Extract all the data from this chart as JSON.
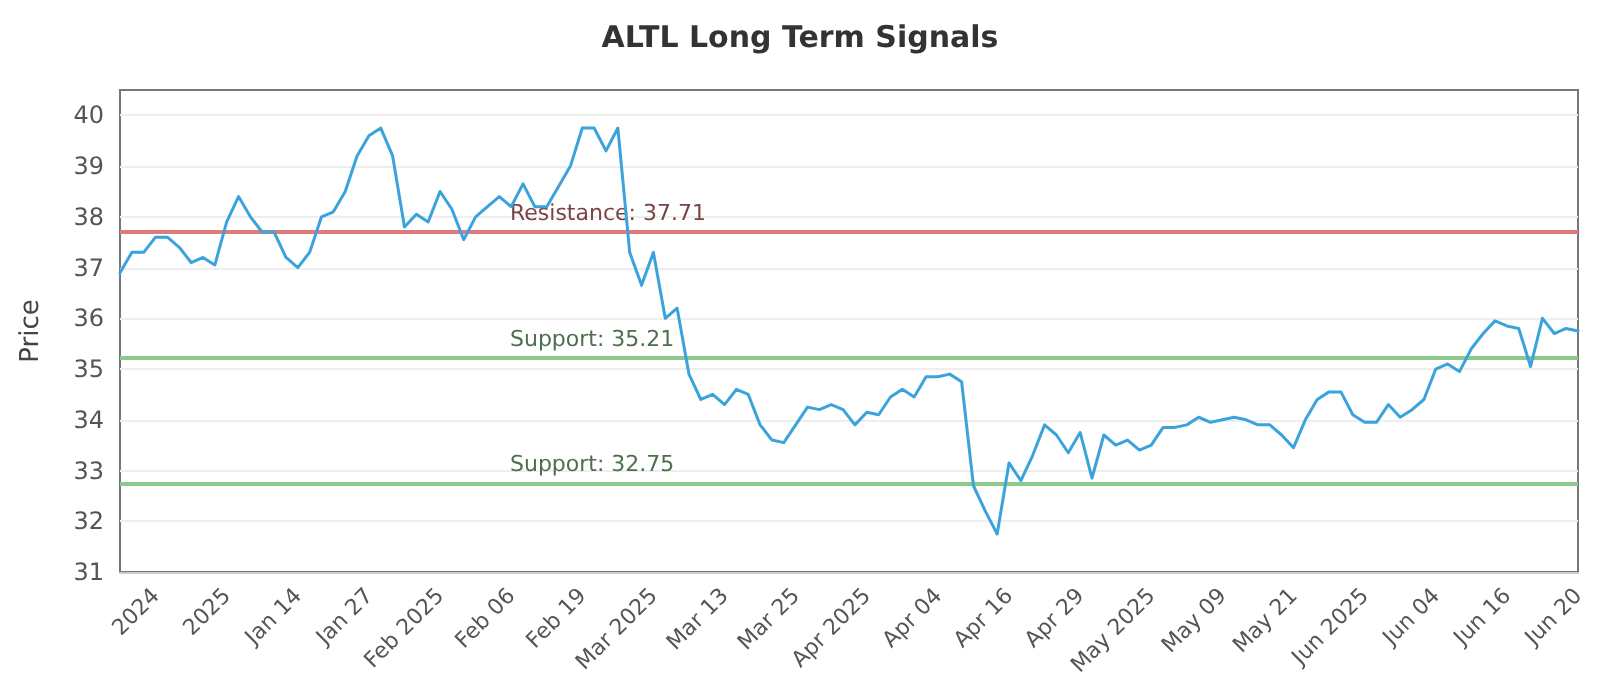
{
  "chart_data": {
    "type": "line",
    "title": "ALTL Long Term Signals",
    "ylabel": "Price",
    "categories": [
      null,
      null,
      null,
      "2024",
      null,
      null,
      null,
      null,
      null,
      "2025",
      null,
      null,
      null,
      null,
      null,
      "Jan 14",
      null,
      null,
      null,
      null,
      null,
      "Jan 27",
      null,
      null,
      null,
      null,
      null,
      "Feb 2025",
      null,
      null,
      null,
      null,
      null,
      "Feb 06",
      null,
      null,
      null,
      null,
      null,
      "Feb 19",
      null,
      null,
      null,
      null,
      null,
      "Mar 2025",
      null,
      null,
      null,
      null,
      null,
      "Mar 13",
      null,
      null,
      null,
      null,
      null,
      "Mar 25",
      null,
      null,
      null,
      null,
      null,
      "Apr 2025",
      null,
      null,
      null,
      null,
      null,
      "Apr 04",
      null,
      null,
      null,
      null,
      null,
      "Apr 16",
      null,
      null,
      null,
      null,
      null,
      "Apr 29",
      null,
      null,
      null,
      null,
      null,
      "May 2025",
      null,
      null,
      null,
      null,
      null,
      "May 09",
      null,
      null,
      null,
      null,
      null,
      "May 21",
      null,
      null,
      null,
      null,
      null,
      "Jun 2025",
      null,
      null,
      null,
      null,
      null,
      "Jun 04",
      null,
      null,
      null,
      null,
      null,
      "Jun 16",
      null,
      null,
      null,
      null,
      null,
      "Jun 20"
    ],
    "series": [
      {
        "color": "#3ba3dc",
        "values": [
          36.9,
          37.3,
          37.3,
          37.6,
          37.6,
          37.4,
          37.1,
          37.2,
          37.05,
          37.9,
          38.4,
          38.0,
          37.7,
          37.7,
          37.2,
          37.0,
          37.3,
          38.0,
          38.1,
          38.5,
          39.2,
          39.6,
          39.75,
          39.2,
          37.8,
          38.05,
          37.9,
          38.5,
          38.15,
          37.55,
          38.0,
          38.2,
          38.4,
          38.2,
          38.65,
          38.2,
          38.2,
          38.6,
          39.0,
          39.75,
          39.75,
          39.3,
          39.75,
          37.3,
          36.65,
          37.3,
          36.0,
          36.2,
          34.9,
          34.4,
          34.5,
          34.3,
          34.6,
          34.5,
          33.9,
          33.6,
          33.55,
          33.9,
          34.25,
          34.2,
          34.3,
          34.2,
          33.9,
          34.15,
          34.1,
          34.45,
          34.6,
          34.45,
          34.85,
          34.85,
          34.9,
          34.75,
          32.7,
          32.2,
          31.75,
          33.15,
          32.8,
          33.3,
          33.9,
          33.7,
          33.35,
          33.75,
          32.85,
          33.7,
          33.5,
          33.6,
          33.4,
          33.5,
          33.85,
          33.85,
          33.9,
          34.05,
          33.95,
          34.0,
          34.05,
          34.0,
          33.9,
          33.9,
          33.7,
          33.45,
          34.0,
          34.4,
          34.55,
          34.55,
          34.1,
          33.95,
          33.95,
          34.3,
          34.05,
          34.2,
          34.4,
          35.0,
          35.1,
          34.95,
          35.4,
          35.7,
          35.95,
          35.85,
          35.8,
          35.05,
          36.0,
          35.7,
          35.8,
          35.75
        ]
      }
    ],
    "ylim": [
      31,
      40.5
    ],
    "yticks": [
      31,
      32,
      33,
      34,
      35,
      36,
      37,
      38,
      39,
      40
    ],
    "grid": "y",
    "marker": "none",
    "line_style": "solid",
    "ref_lines": [
      {
        "axis": "y",
        "value": 37.71,
        "label": "Resistance: 37.71",
        "color": "#e07b7b"
      },
      {
        "axis": "y",
        "value": 35.21,
        "label": "Support: 35.21",
        "color": "#8cc98c"
      },
      {
        "axis": "y",
        "value": 32.75,
        "label": "Support: 32.75",
        "color": "#8cc98c"
      }
    ]
  }
}
